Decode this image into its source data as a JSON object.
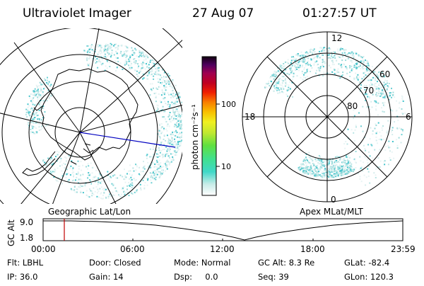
{
  "header": {
    "instrument": "Ultraviolet Imager",
    "date": "27 Aug 07",
    "time": "01:27:57 UT"
  },
  "left_map": {
    "label": "Geographic Lat/Lon"
  },
  "right_map": {
    "label": "Apex MLat/MLT",
    "lat_labels": [
      "60",
      "70",
      "80"
    ],
    "mlt_labels": {
      "top": "12",
      "bottom": "0",
      "left": "18",
      "right": "6"
    }
  },
  "colorbar": {
    "label": "photon cm⁻²s⁻¹",
    "ticks": [
      "100",
      "10"
    ]
  },
  "timeline": {
    "ylabel": "GC Alt",
    "y_ticks": [
      "9.0",
      "1.8"
    ],
    "x_ticks": [
      "00:00",
      "06:00",
      "12:00",
      "18:00",
      "23:59"
    ],
    "marker_time": "01:27:57"
  },
  "info": {
    "row1": [
      "Flt: LBHL",
      "Door: Closed",
      "Mode: Normal",
      "GC Alt: 8.3 Re",
      "GLat: -82.4"
    ],
    "row2": [
      "IP: 36.0",
      "Gain: 14",
      "Dsp:     0.0",
      "Seq: 39",
      "GLon: 120.3"
    ]
  },
  "colors": {
    "aurora": "#40c8d0",
    "marker": "#c00000",
    "meridian": "#0000c0"
  }
}
